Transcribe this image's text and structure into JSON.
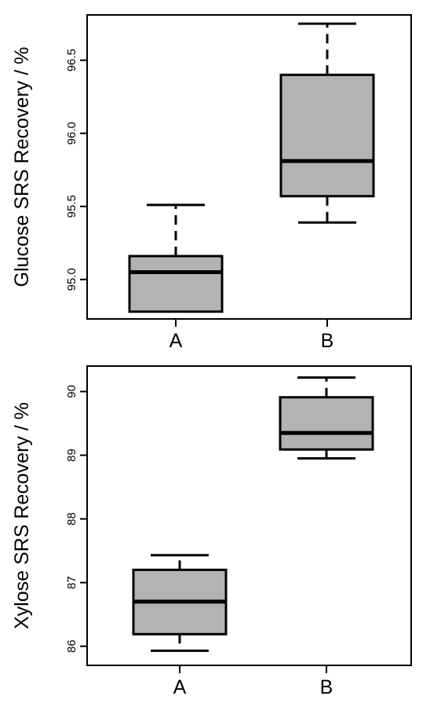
{
  "chart_data": [
    {
      "type": "boxplot",
      "ylabel": "Glucose SRS Recovery / %",
      "categories": [
        "A",
        "B"
      ],
      "ylim": [
        94.73,
        96.81
      ],
      "yticks": [
        95.0,
        95.5,
        96.0,
        96.5
      ],
      "ytick_labels": [
        "95.0",
        "95.5",
        "96.0",
        "96.5"
      ],
      "boxes": [
        {
          "category": "A",
          "whisker_low": 94.78,
          "q1": 94.78,
          "median": 95.05,
          "q3": 95.16,
          "whisker_high": 95.51
        },
        {
          "category": "B",
          "whisker_low": 95.39,
          "q1": 95.57,
          "median": 95.81,
          "q3": 96.4,
          "whisker_high": 96.75
        }
      ],
      "colors": {
        "box_fill": "#b3b3b3",
        "stroke": "#000000"
      },
      "grid": false
    },
    {
      "type": "boxplot",
      "ylabel": "Xylose SRS Recovery / %",
      "categories": [
        "A",
        "B"
      ],
      "ylim": [
        85.7,
        90.4
      ],
      "yticks": [
        86,
        87,
        88,
        89,
        90
      ],
      "ytick_labels": [
        "86",
        "87",
        "88",
        "89",
        "90"
      ],
      "boxes": [
        {
          "category": "A",
          "whisker_low": 85.93,
          "q1": 86.19,
          "median": 86.7,
          "q3": 87.2,
          "whisker_high": 87.43
        },
        {
          "category": "B",
          "whisker_low": 88.95,
          "q1": 89.09,
          "median": 89.35,
          "q3": 89.91,
          "whisker_high": 90.22
        }
      ],
      "colors": {
        "box_fill": "#b3b3b3",
        "stroke": "#000000"
      },
      "grid": false
    }
  ]
}
